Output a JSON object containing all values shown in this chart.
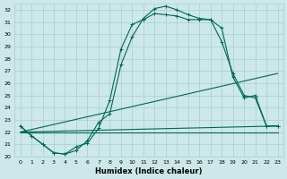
{
  "xlabel": "Humidex (Indice chaleur)",
  "background_color": "#cce8e8",
  "grid_color": "#aacece",
  "line_color": "#006655",
  "xlim": [
    -0.5,
    23.5
  ],
  "ylim": [
    20,
    32.5
  ],
  "yticks": [
    20,
    21,
    22,
    23,
    24,
    25,
    26,
    27,
    28,
    29,
    30,
    31,
    32
  ],
  "xticks": [
    0,
    1,
    2,
    3,
    4,
    5,
    6,
    7,
    8,
    9,
    10,
    11,
    12,
    13,
    14,
    15,
    16,
    17,
    18,
    19,
    20,
    21,
    22,
    23
  ],
  "curve1_x": [
    0,
    1,
    2,
    3,
    4,
    5,
    6,
    7,
    8,
    9,
    10,
    11,
    12,
    13,
    14,
    15,
    16,
    17,
    18,
    19,
    20,
    21,
    22,
    23
  ],
  "curve1_y": [
    22.5,
    21.7,
    21.0,
    20.3,
    20.2,
    20.8,
    21.1,
    22.3,
    24.6,
    28.8,
    30.8,
    31.2,
    31.7,
    31.6,
    31.5,
    31.2,
    31.2,
    31.2,
    29.4,
    26.8,
    25.0,
    24.8,
    22.5,
    22.5
  ],
  "curve2_x": [
    0,
    1,
    2,
    3,
    4,
    5,
    6,
    7,
    8,
    9,
    10,
    11,
    12,
    13,
    14,
    15,
    16,
    17,
    18,
    19,
    20,
    21,
    22,
    23
  ],
  "curve2_y": [
    22.5,
    21.7,
    21.0,
    20.3,
    20.2,
    20.5,
    21.3,
    22.8,
    23.5,
    27.5,
    29.8,
    31.3,
    32.1,
    32.3,
    32.0,
    31.6,
    31.3,
    31.2,
    30.5,
    26.5,
    24.8,
    25.0,
    22.5,
    22.5
  ],
  "line1_x": [
    0,
    23
  ],
  "line1_y": [
    22.0,
    22.5
  ],
  "line2_x": [
    0,
    23
  ],
  "line2_y": [
    22.0,
    26.8
  ],
  "line3_x": [
    0,
    23
  ],
  "line3_y": [
    22.0,
    22.0
  ]
}
